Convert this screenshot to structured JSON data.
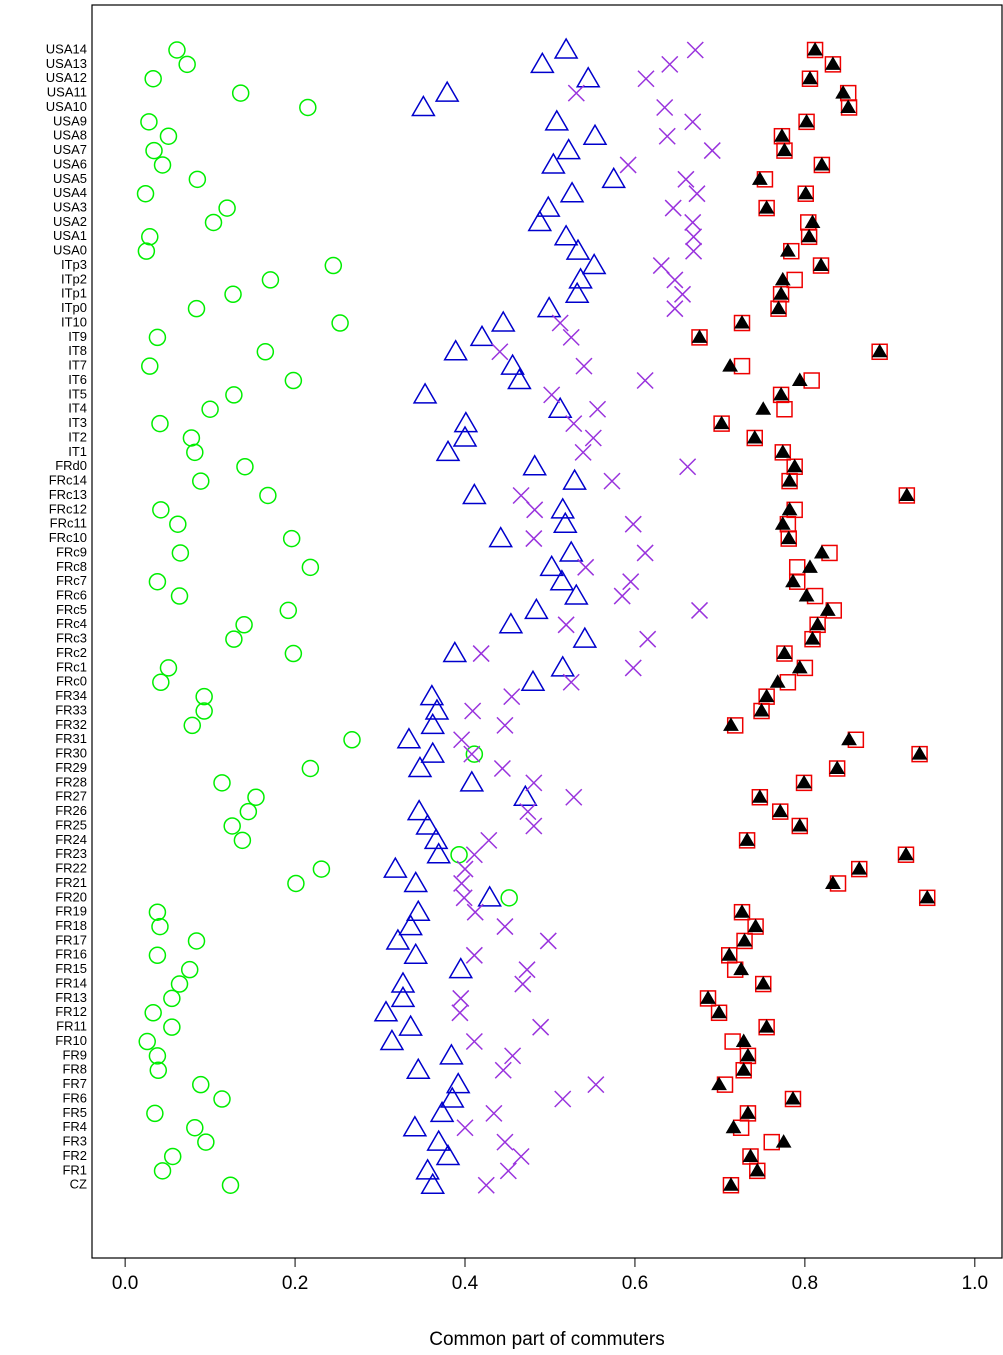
{
  "chart_data": {
    "type": "dot",
    "xlabel": "Common part of commuters",
    "categories": [
      "USA14",
      "USA13",
      "USA12",
      "USA11",
      "USA10",
      "USA9",
      "USA8",
      "USA7",
      "USA6",
      "USA5",
      "USA4",
      "USA3",
      "USA2",
      "USA1",
      "USA0",
      "ITp3",
      "ITp2",
      "ITp1",
      "ITp0",
      "IT10",
      "IT9",
      "IT8",
      "IT7",
      "IT6",
      "IT5",
      "IT4",
      "IT3",
      "IT2",
      "IT1",
      "FRd0",
      "FRc14",
      "FRc13",
      "FRc12",
      "FRc11",
      "FRc10",
      "FRc9",
      "FRc8",
      "FRc7",
      "FRc6",
      "FRc5",
      "FRc4",
      "FRc3",
      "FRc2",
      "FRc1",
      "FRc0",
      "FR34",
      "FR33",
      "FR32",
      "FR31",
      "FR30",
      "FR29",
      "FR28",
      "FR27",
      "FR26",
      "FR25",
      "FR24",
      "FR23",
      "FR22",
      "FR21",
      "FR20",
      "FR19",
      "FR18",
      "FR17",
      "FR16",
      "FR15",
      "FR14",
      "FR13",
      "FR12",
      "FR11",
      "FR10",
      "FR9",
      "FR8",
      "FR7",
      "FR6",
      "FR5",
      "FR4",
      "FR3",
      "FR2",
      "FR1",
      "CZ"
    ],
    "series": [
      {
        "color": "#00ee00",
        "marker": "circle",
        "values": [
          0.061,
          0.073,
          0.033,
          0.136,
          0.215,
          0.028,
          0.051,
          0.034,
          0.044,
          0.085,
          0.024,
          0.12,
          0.104,
          0.029,
          0.025,
          0.245,
          0.171,
          0.127,
          0.084,
          0.253,
          0.038,
          0.165,
          0.029,
          0.198,
          0.128,
          0.1,
          0.041,
          0.078,
          0.082,
          0.141,
          0.089,
          0.168,
          0.042,
          0.062,
          0.196,
          0.065,
          0.218,
          0.038,
          0.064,
          0.192,
          0.14,
          0.128,
          0.198,
          0.051,
          0.042,
          0.093,
          0.093,
          0.079,
          0.267,
          0.411,
          0.218,
          0.114,
          0.154,
          0.145,
          0.126,
          0.138,
          0.393,
          0.231,
          0.201,
          0.452,
          0.038,
          0.041,
          0.084,
          0.038,
          0.076,
          0.064,
          0.055,
          0.033,
          0.055,
          0.026,
          0.038,
          0.039,
          0.089,
          0.114,
          0.035,
          0.082,
          0.095,
          0.056,
          0.044,
          0.124
        ]
      },
      {
        "color": "#0000cc",
        "marker": "triangle",
        "values": [
          0.519,
          0.491,
          0.545,
          0.379,
          0.351,
          0.508,
          0.553,
          0.522,
          0.504,
          0.575,
          0.526,
          0.498,
          0.488,
          0.519,
          0.533,
          0.552,
          0.536,
          0.532,
          0.499,
          0.445,
          0.42,
          0.389,
          0.456,
          0.464,
          0.353,
          0.512,
          0.401,
          0.4,
          0.38,
          0.482,
          0.529,
          0.411,
          0.515,
          0.518,
          0.442,
          0.525,
          0.502,
          0.514,
          0.531,
          0.484,
          0.454,
          0.541,
          0.388,
          0.515,
          0.48,
          0.361,
          0.367,
          0.362,
          0.334,
          0.362,
          0.347,
          0.408,
          0.471,
          0.346,
          0.356,
          0.366,
          0.369,
          0.318,
          0.342,
          0.429,
          0.345,
          0.336,
          0.321,
          0.342,
          0.395,
          0.327,
          0.327,
          0.307,
          0.336,
          0.314,
          0.384,
          0.345,
          0.392,
          0.385,
          0.373,
          0.341,
          0.369,
          0.38,
          0.356,
          0.362
        ]
      },
      {
        "color": "#9933dd",
        "marker": "x",
        "values": [
          0.671,
          0.641,
          0.613,
          0.531,
          0.635,
          0.668,
          0.638,
          0.691,
          0.592,
          0.66,
          0.673,
          0.645,
          0.668,
          0.669,
          0.669,
          0.631,
          0.647,
          0.656,
          0.647,
          0.512,
          0.525,
          0.441,
          0.54,
          0.612,
          0.502,
          0.556,
          0.528,
          0.551,
          0.539,
          0.662,
          0.573,
          0.466,
          0.482,
          0.598,
          0.481,
          0.612,
          0.542,
          0.595,
          0.585,
          0.676,
          0.519,
          0.615,
          0.419,
          0.598,
          0.525,
          0.455,
          0.409,
          0.447,
          0.396,
          0.408,
          0.444,
          0.481,
          0.528,
          0.474,
          0.481,
          0.428,
          0.411,
          0.4,
          0.396,
          0.399,
          0.412,
          0.447,
          0.498,
          0.411,
          0.473,
          0.468,
          0.395,
          0.394,
          0.489,
          0.411,
          0.456,
          0.445,
          0.554,
          0.515,
          0.434,
          0.4,
          0.447,
          0.466,
          0.451,
          0.425
        ]
      },
      {
        "color": "#ee0000",
        "marker": "square",
        "values": [
          0.812,
          0.833,
          0.806,
          0.851,
          0.852,
          0.802,
          0.773,
          0.776,
          0.82,
          0.753,
          0.801,
          0.755,
          0.804,
          0.805,
          0.784,
          0.819,
          0.788,
          0.772,
          0.769,
          0.726,
          0.676,
          0.888,
          0.726,
          0.808,
          0.772,
          0.776,
          0.702,
          0.741,
          0.774,
          0.788,
          0.782,
          0.92,
          0.788,
          0.78,
          0.781,
          0.829,
          0.791,
          0.791,
          0.812,
          0.834,
          0.815,
          0.809,
          0.776,
          0.8,
          0.78,
          0.755,
          0.749,
          0.718,
          0.86,
          0.935,
          0.838,
          0.799,
          0.747,
          0.771,
          0.794,
          0.732,
          0.919,
          0.864,
          0.839,
          0.944,
          0.726,
          0.742,
          0.729,
          0.711,
          0.718,
          0.751,
          0.686,
          0.699,
          0.755,
          0.715,
          0.733,
          0.728,
          0.706,
          0.786,
          0.733,
          0.725,
          0.761,
          0.736,
          0.744,
          0.713
        ]
      },
      {
        "color": "#000000",
        "marker": "filled-triangle",
        "values": [
          0.812,
          0.833,
          0.806,
          0.845,
          0.851,
          0.802,
          0.773,
          0.776,
          0.82,
          0.747,
          0.801,
          0.755,
          0.809,
          0.805,
          0.78,
          0.819,
          0.774,
          0.772,
          0.769,
          0.726,
          0.676,
          0.888,
          0.712,
          0.794,
          0.772,
          0.751,
          0.702,
          0.741,
          0.774,
          0.788,
          0.782,
          0.92,
          0.782,
          0.774,
          0.781,
          0.82,
          0.806,
          0.786,
          0.802,
          0.827,
          0.815,
          0.809,
          0.776,
          0.794,
          0.768,
          0.755,
          0.749,
          0.713,
          0.852,
          0.935,
          0.838,
          0.799,
          0.747,
          0.771,
          0.794,
          0.732,
          0.919,
          0.864,
          0.833,
          0.944,
          0.726,
          0.742,
          0.729,
          0.711,
          0.725,
          0.751,
          0.686,
          0.699,
          0.755,
          0.728,
          0.733,
          0.728,
          0.699,
          0.786,
          0.733,
          0.716,
          0.775,
          0.736,
          0.744,
          0.713
        ]
      }
    ],
    "xlim": [
      -0.039,
      1.032
    ],
    "xticks": [
      {
        "value": 0,
        "label": "0.0"
      },
      0.2,
      0.4,
      0.6,
      0.8,
      {
        "value": 1,
        "label": "1.0"
      }
    ]
  }
}
